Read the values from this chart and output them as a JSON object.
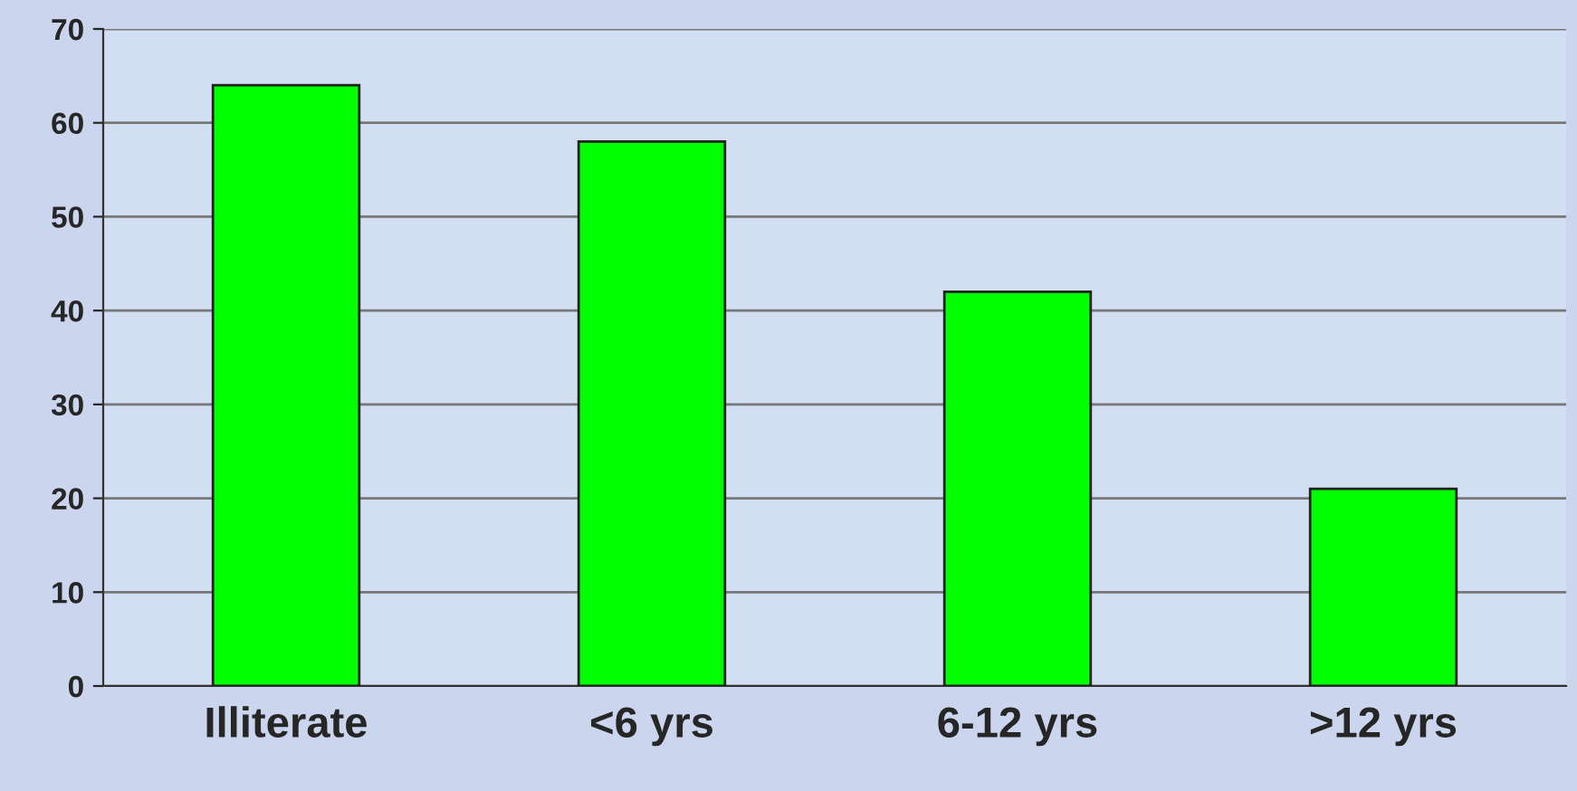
{
  "chart_data": {
    "type": "bar",
    "categories": [
      "Illiterate",
      "<6 yrs",
      "6-12 yrs",
      ">12 yrs"
    ],
    "values": [
      64,
      58,
      42,
      21
    ],
    "color": "#00ff00",
    "ylim": [
      0,
      70
    ],
    "yticks": [
      0,
      10,
      20,
      30,
      40,
      50,
      60,
      70
    ],
    "grid": "y"
  }
}
